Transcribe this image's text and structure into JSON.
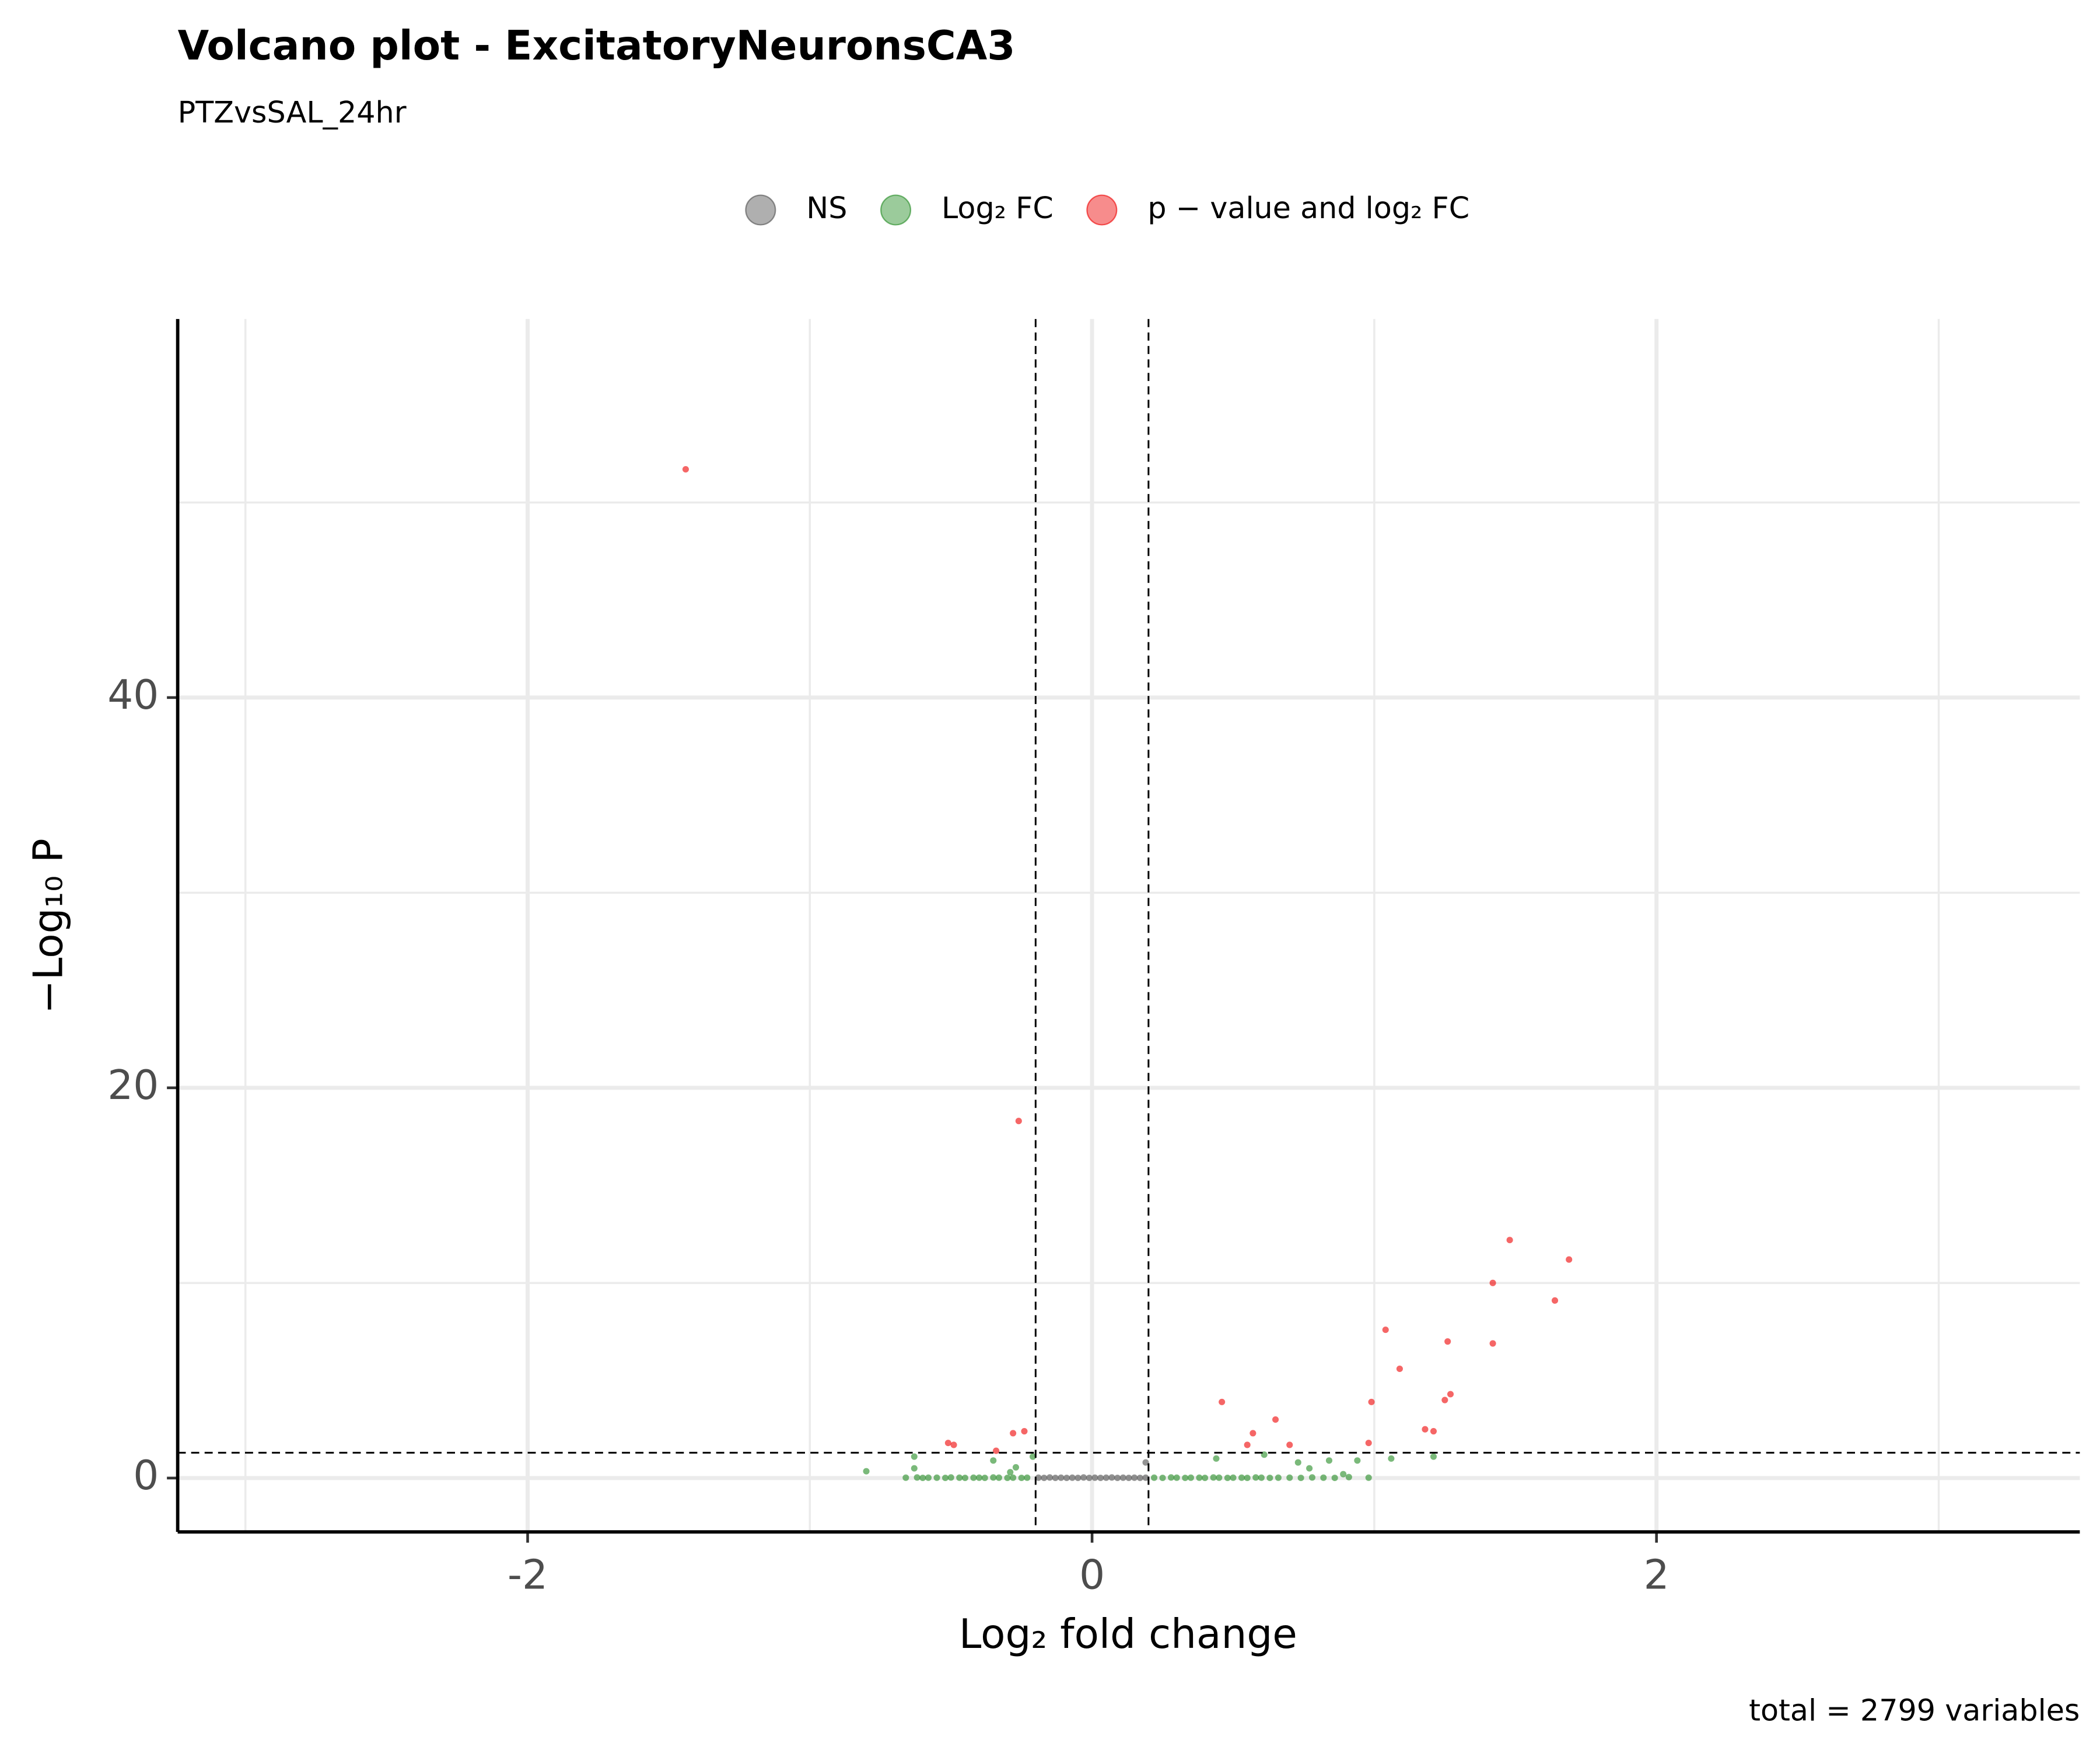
{
  "chart_data": {
    "type": "scatter",
    "title": "Volcano plot - ExcitatoryNeuronsCA3",
    "subtitle": "PTZvsSAL_24hr",
    "x_label": "Log₂ fold change",
    "y_label": "−Log₁₀ P",
    "caption": "total = 2799 variables",
    "xlim": [
      -3.24,
      3.5
    ],
    "ylim": [
      -2.76,
      59.4
    ],
    "xticks": [
      -2,
      0,
      2
    ],
    "yticks": [
      0,
      20,
      40
    ],
    "x_minor_grid": [
      -3,
      -1,
      1,
      3
    ],
    "y_minor_grid": [
      10,
      30,
      50
    ],
    "grid": true,
    "legend": "top",
    "x_cutoffs": [
      -0.2,
      0.2
    ],
    "y_cutoff": 1.3,
    "series": [
      {
        "name": "NS",
        "color": "#4d4d4d",
        "x": [
          -0.19,
          -0.17,
          -0.15,
          -0.13,
          -0.11,
          -0.09,
          -0.07,
          -0.05,
          -0.03,
          -0.01,
          0.01,
          0.03,
          0.05,
          0.07,
          0.09,
          0.11,
          0.13,
          0.15,
          0.17,
          0.19,
          0.19
        ],
        "values": [
          0.02,
          0.01,
          0.03,
          0.01,
          0.02,
          0.01,
          0.02,
          0.01,
          0.03,
          0.01,
          0.02,
          0.01,
          0.02,
          0.03,
          0.01,
          0.02,
          0.01,
          0.02,
          0.01,
          0.02,
          0.8
        ]
      },
      {
        "name": "Log₂ FC",
        "color": "#228b22",
        "x": [
          -0.8,
          -0.63,
          -0.63,
          -0.35,
          -0.29,
          -0.27,
          -0.21,
          0.44,
          0.61,
          0.73,
          0.77,
          0.84,
          0.89,
          0.91,
          0.94,
          0.98,
          1.06,
          1.21,
          -0.66,
          -0.62,
          -0.6,
          -0.58,
          -0.55,
          -0.52,
          -0.5,
          -0.47,
          -0.45,
          -0.42,
          -0.4,
          -0.38,
          -0.35,
          -0.33,
          -0.3,
          -0.28,
          -0.25,
          -0.23,
          0.22,
          0.25,
          0.28,
          0.3,
          0.33,
          0.35,
          0.38,
          0.4,
          0.43,
          0.45,
          0.48,
          0.5,
          0.53,
          0.55,
          0.58,
          0.6,
          0.63,
          0.66,
          0.7,
          0.74,
          0.78,
          0.82,
          0.86
        ],
        "values": [
          0.35,
          1.1,
          0.5,
          0.9,
          0.3,
          0.55,
          1.1,
          1.0,
          1.2,
          0.8,
          0.5,
          0.9,
          0.2,
          0.05,
          0.9,
          0.02,
          1.0,
          1.1,
          0.02,
          0.03,
          0.01,
          0.02,
          0.02,
          0.01,
          0.03,
          0.02,
          0.01,
          0.02,
          0.02,
          0.01,
          0.03,
          0.02,
          0.01,
          0.02,
          0.01,
          0.02,
          0.02,
          0.01,
          0.03,
          0.02,
          0.01,
          0.02,
          0.02,
          0.01,
          0.03,
          0.02,
          0.01,
          0.02,
          0.02,
          0.01,
          0.03,
          0.02,
          0.01,
          0.02,
          0.02,
          0.01,
          0.03,
          0.02,
          0.01
        ]
      },
      {
        "name": "p − value and log₂ FC",
        "color": "#ee0000",
        "x": [
          -1.44,
          -0.26,
          1.48,
          1.69,
          1.42,
          1.64,
          1.04,
          1.26,
          1.42,
          1.09,
          1.27,
          1.25,
          0.46,
          0.99,
          0.65,
          0.57,
          1.18,
          1.21,
          -0.24,
          -0.28,
          0.55,
          0.7,
          0.98,
          -0.51,
          -0.49,
          -0.34
        ],
        "values": [
          51.7,
          18.3,
          12.2,
          11.2,
          10.0,
          9.1,
          7.6,
          7.0,
          6.9,
          5.6,
          4.3,
          4.0,
          3.9,
          3.9,
          3.0,
          2.3,
          2.5,
          2.4,
          2.4,
          2.3,
          1.7,
          1.7,
          1.8,
          1.8,
          1.7,
          1.4
        ]
      }
    ]
  }
}
